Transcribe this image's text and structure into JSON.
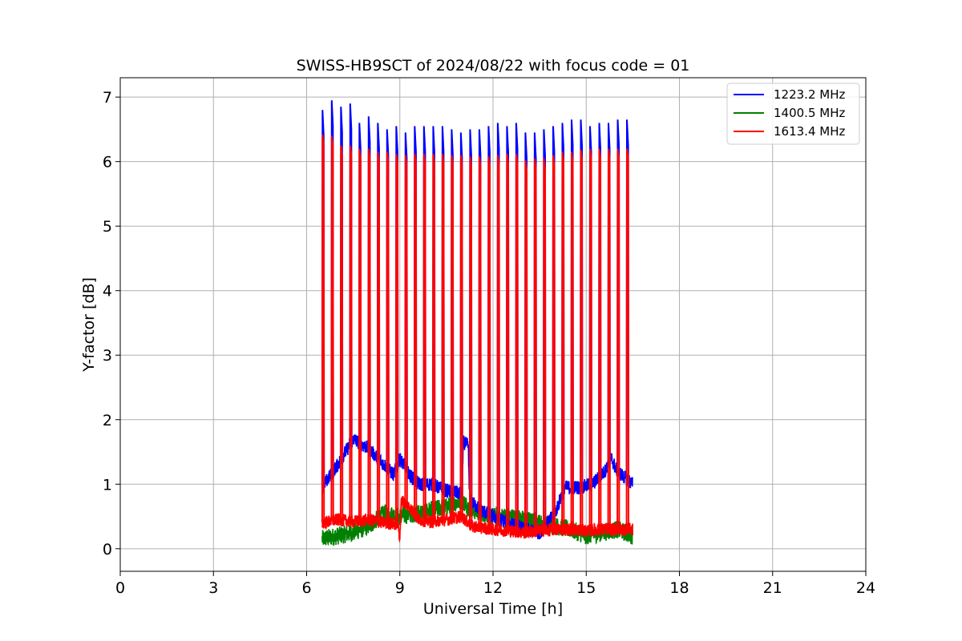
{
  "chart_data": {
    "type": "line",
    "title": "SWISS-HB9SCT of 2024/08/22 with focus code = 01",
    "xlabel": "Universal Time [h]",
    "ylabel": "Y-factor [dB]",
    "xlim": [
      0,
      24
    ],
    "ylim": [
      -0.35,
      7.3
    ],
    "xticks": [
      0,
      3,
      6,
      9,
      12,
      15,
      18,
      21,
      24
    ],
    "yticks": [
      0,
      1,
      2,
      3,
      4,
      5,
      6,
      7
    ],
    "grid": true,
    "legend_position": "top-right",
    "data_start": 6.5,
    "data_end": 16.5,
    "series": [
      {
        "name": "1223.2 MHz",
        "color": "#0000ff",
        "baseline": [
          [
            6.5,
            0.95
          ],
          [
            7.0,
            1.3
          ],
          [
            7.5,
            1.7
          ],
          [
            8.0,
            1.55
          ],
          [
            8.5,
            1.3
          ],
          [
            8.8,
            1.15
          ],
          [
            9.0,
            1.4
          ],
          [
            9.3,
            1.15
          ],
          [
            9.6,
            1.0
          ],
          [
            10.0,
            1.0
          ],
          [
            10.5,
            0.9
          ],
          [
            11.0,
            0.85
          ],
          [
            11.05,
            1.65
          ],
          [
            11.2,
            1.6
          ],
          [
            11.25,
            0.75
          ],
          [
            11.6,
            0.6
          ],
          [
            12.0,
            0.5
          ],
          [
            12.5,
            0.4
          ],
          [
            13.0,
            0.3
          ],
          [
            13.5,
            0.25
          ],
          [
            14.0,
            0.55
          ],
          [
            14.3,
            0.95
          ],
          [
            14.8,
            0.95
          ],
          [
            15.2,
            1.0
          ],
          [
            15.6,
            1.2
          ],
          [
            15.8,
            1.4
          ],
          [
            16.0,
            1.2
          ],
          [
            16.5,
            1.0
          ]
        ],
        "spike_peaks": [
          6.8,
          6.95,
          6.85,
          6.9,
          6.6,
          6.7,
          6.6,
          6.5,
          6.55,
          6.45,
          6.55,
          6.55,
          6.55,
          6.55,
          6.5,
          6.45,
          6.5,
          6.5,
          6.55,
          6.6,
          6.55,
          6.6,
          6.45,
          6.45,
          6.5,
          6.55,
          6.6,
          6.65,
          6.65,
          6.55,
          6.6,
          6.6,
          6.65,
          6.65
        ]
      },
      {
        "name": "1400.5 MHz",
        "color": "#008000",
        "baseline": [
          [
            6.5,
            0.15
          ],
          [
            7.0,
            0.2
          ],
          [
            7.5,
            0.25
          ],
          [
            8.0,
            0.35
          ],
          [
            8.5,
            0.55
          ],
          [
            9.0,
            0.5
          ],
          [
            9.5,
            0.55
          ],
          [
            10.0,
            0.6
          ],
          [
            10.5,
            0.65
          ],
          [
            11.0,
            0.75
          ],
          [
            11.3,
            0.6
          ],
          [
            12.0,
            0.5
          ],
          [
            12.5,
            0.5
          ],
          [
            13.0,
            0.45
          ],
          [
            13.5,
            0.4
          ],
          [
            14.0,
            0.35
          ],
          [
            14.5,
            0.3
          ],
          [
            15.0,
            0.2
          ],
          [
            15.5,
            0.25
          ],
          [
            16.0,
            0.3
          ],
          [
            16.5,
            0.2
          ]
        ]
      },
      {
        "name": "1613.4 MHz",
        "color": "#ff0000",
        "baseline": [
          [
            6.5,
            0.4
          ],
          [
            7.0,
            0.45
          ],
          [
            7.5,
            0.42
          ],
          [
            8.0,
            0.45
          ],
          [
            8.5,
            0.4
          ],
          [
            8.95,
            0.38
          ],
          [
            9.0,
            0.15
          ],
          [
            9.05,
            0.75
          ],
          [
            9.3,
            0.65
          ],
          [
            9.6,
            0.45
          ],
          [
            10.0,
            0.42
          ],
          [
            10.5,
            0.45
          ],
          [
            11.0,
            0.5
          ],
          [
            11.3,
            0.35
          ],
          [
            12.0,
            0.3
          ],
          [
            12.5,
            0.28
          ],
          [
            13.0,
            0.25
          ],
          [
            13.5,
            0.28
          ],
          [
            14.0,
            0.3
          ],
          [
            14.5,
            0.3
          ],
          [
            15.0,
            0.28
          ],
          [
            15.5,
            0.3
          ],
          [
            16.0,
            0.3
          ],
          [
            16.5,
            0.3
          ]
        ],
        "spike_peaks": [
          6.42,
          6.4,
          6.25,
          6.25,
          6.2,
          6.2,
          6.15,
          6.15,
          6.12,
          6.1,
          6.12,
          6.12,
          6.12,
          6.12,
          6.1,
          6.1,
          6.08,
          6.08,
          6.08,
          6.1,
          6.12,
          6.12,
          6.02,
          6.05,
          6.05,
          6.1,
          6.15,
          6.15,
          6.18,
          6.2,
          6.2,
          6.2,
          6.2,
          6.2
        ]
      }
    ]
  }
}
